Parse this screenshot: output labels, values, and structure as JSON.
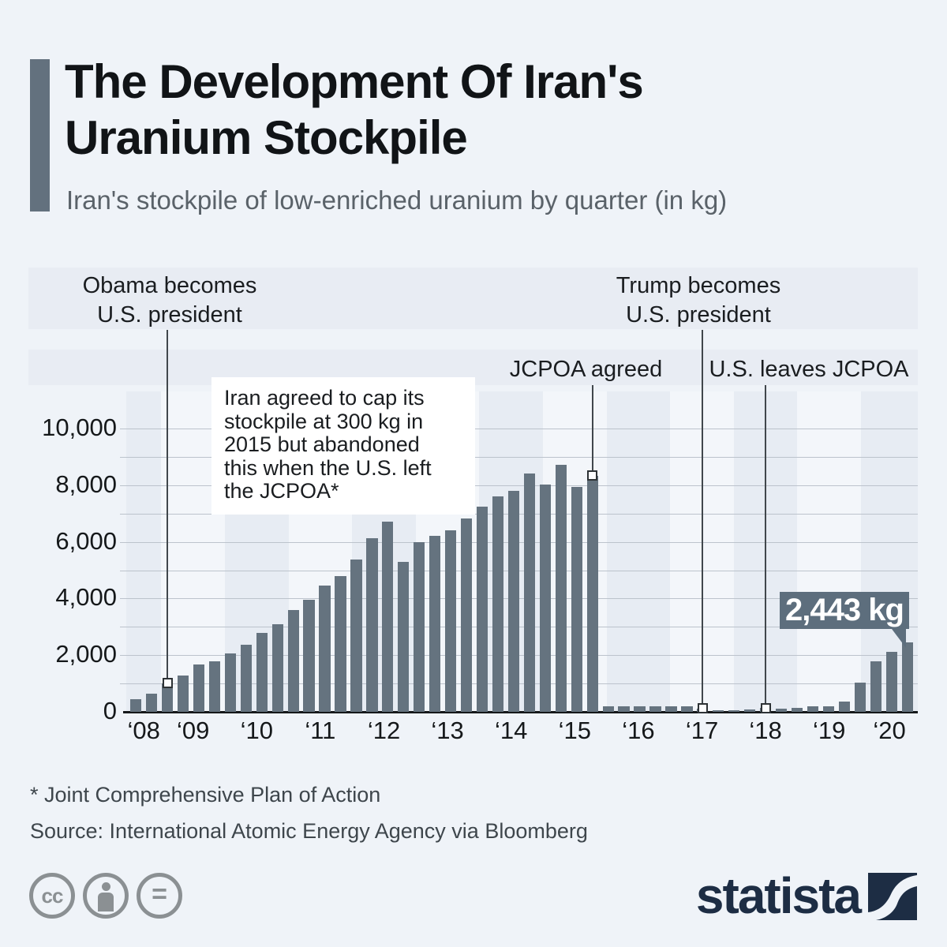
{
  "header": {
    "title": "The Development Of Iran's\nUranium Stockpile",
    "subtitle": "Iran's stockpile of low-enriched uranium by quarter (in kg)"
  },
  "annotations": {
    "obama": "Obama becomes\nU.S. president",
    "trump": "Trump becomes\nU.S. president",
    "jcpoa": "JCPOA agreed",
    "us_leaves": "U.S. leaves JCPOA",
    "cap_note": "Iran agreed to cap its\nstockpile at 300 kg in\n2015 but abandoned\nthis when the U.S. left\nthe JCPOA*",
    "tooltip": "2,443 kg"
  },
  "chart_data": {
    "type": "bar",
    "title": "Iran's stockpile of low-enriched uranium by quarter (in kg)",
    "unit": "kg",
    "ylim": [
      0,
      10000
    ],
    "grid": "horizontal, every 1000",
    "year_labels": [
      "‘08",
      "‘09",
      "‘10",
      "‘11",
      "‘12",
      "‘13",
      "‘14",
      "‘15",
      "‘16",
      "‘17",
      "‘18",
      "‘19",
      "‘20"
    ],
    "yticks": [
      {
        "value": 0,
        "label": "0"
      },
      {
        "value": 2000,
        "label": "2,000"
      },
      {
        "value": 4000,
        "label": "4,000"
      },
      {
        "value": 6000,
        "label": "6,000"
      },
      {
        "value": 8000,
        "label": "8,000"
      },
      {
        "value": 10000,
        "label": "10,000"
      }
    ],
    "values": [
      450,
      630,
      1010,
      1270,
      1680,
      1780,
      2060,
      2370,
      2790,
      3090,
      3600,
      3970,
      4470,
      4800,
      5390,
      6140,
      6720,
      5280,
      6000,
      6200,
      6400,
      6820,
      7230,
      7610,
      7810,
      8420,
      8020,
      8720,
      7930,
      8340,
      190,
      190,
      190,
      190,
      185,
      195,
      120,
      60,
      70,
      90,
      130,
      120,
      130,
      190,
      200,
      370,
      1021,
      1790,
      2105,
      2443
    ],
    "last_value_label": "2,443 kg",
    "events": [
      {
        "label": "Obama becomes U.S. president",
        "bar_index": 2,
        "value": 1010,
        "row": 1
      },
      {
        "label": "JCPOA agreed",
        "bar_index": 29,
        "value": 8340,
        "row": 2
      },
      {
        "label": "Trump becomes U.S. president",
        "bar_index": 36,
        "value": 120,
        "row": 1
      },
      {
        "label": "U.S. leaves JCPOA",
        "bar_index": 40,
        "value": 130,
        "row": 2
      }
    ],
    "legend": "none"
  },
  "footer": {
    "footnote": "* Joint Comprehensive Plan of Action",
    "source": "Source: International Atomic Energy Agency via Bloomberg"
  },
  "branding": {
    "logo_text": "statista",
    "icons": [
      "creative-commons-icon",
      "attribution-icon",
      "equal-icon"
    ]
  },
  "colors": {
    "background": "#eff3f8",
    "bar": "#65737f",
    "accent": "#63717e",
    "tooltip_bg": "#5d6e7d",
    "stripe_dark": "#e7ecf3",
    "stripe_light": "#f3f6fa",
    "logo_navy": "#1d2d44"
  }
}
